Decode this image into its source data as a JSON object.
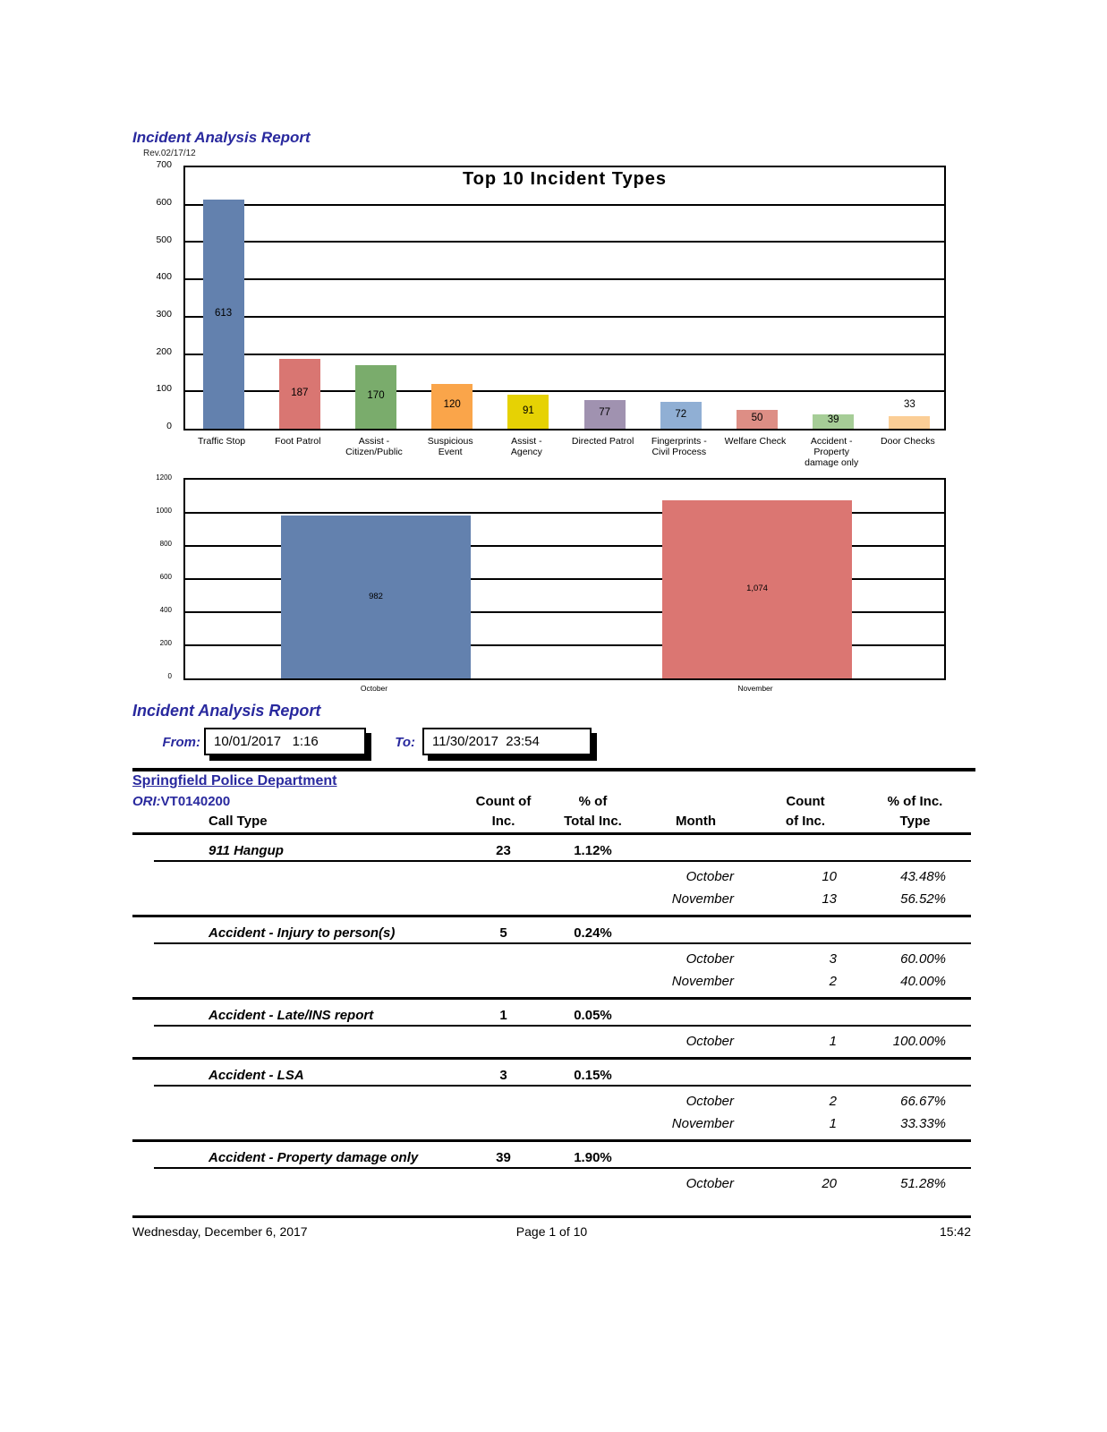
{
  "page": {
    "title": "Incident Analysis Report",
    "rev": "Rev.02/17/12"
  },
  "chart_data": [
    {
      "type": "bar",
      "title": "Top 10 Incident Types",
      "categories": [
        "Traffic Stop",
        "Foot Patrol",
        "Assist -\nCitizen/Public",
        "Suspicious\nEvent",
        "Assist -\nAgency",
        "Directed Patrol",
        "Fingerprints -\nCivil Process",
        "Welfare Check",
        "Accident -\nProperty\ndamage only",
        "Door Checks"
      ],
      "values": [
        613,
        187,
        170,
        120,
        91,
        77,
        72,
        50,
        39,
        33
      ],
      "labels": [
        "613",
        "187",
        "170",
        "120",
        "91",
        "77",
        "72",
        "50",
        "39",
        "33"
      ],
      "label_above": [
        false,
        false,
        false,
        false,
        false,
        false,
        false,
        false,
        false,
        true
      ],
      "colors": [
        "#6381AE",
        "#D97672",
        "#7AAC6C",
        "#FAA54A",
        "#E6D204",
        "#A092B0",
        "#90AFD4",
        "#DD8E85",
        "#A6CD97",
        "#FBCE96"
      ],
      "xlabel": "",
      "ylabel": "",
      "ylim": [
        0,
        700
      ],
      "ytick_step": 100,
      "grid": true,
      "legend": false
    },
    {
      "type": "bar",
      "title": "",
      "categories": [
        "October",
        "November"
      ],
      "values": [
        982,
        1074
      ],
      "labels": [
        "982",
        "1,074"
      ],
      "label_above": [
        false,
        false
      ],
      "colors": [
        "#6381AE",
        "#DB7672"
      ],
      "xlabel": "",
      "ylabel": "",
      "ylim": [
        0,
        1200
      ],
      "ytick_step": 200,
      "grid": true,
      "legend": false
    }
  ],
  "report": {
    "title": "Incident Analysis Report",
    "from_label": "From:",
    "from_value": "10/01/2017   1:16",
    "to_label": "To:",
    "to_value": "11/30/2017  23:54"
  },
  "department": {
    "name": "Springfield Police Department",
    "ori_label": "ORI:",
    "ori_value": "VT0140200"
  },
  "table": {
    "headers": {
      "call_type": "Call Type",
      "count_of_line1": "Count of",
      "count_of_line2": "Inc.",
      "pct_total_line1": "% of",
      "pct_total_line2": "Total Inc.",
      "month": "Month",
      "count_line1": "Count",
      "count_line2": "of Inc.",
      "pct_type_line1": "% of Inc.",
      "pct_type_line2": "Type"
    },
    "groups": [
      {
        "call_type": "911 Hangup",
        "count": "23",
        "pct": "1.12%",
        "end_rule": true,
        "months": [
          {
            "month": "October",
            "count": "10",
            "pct": "43.48%"
          },
          {
            "month": "November",
            "count": "13",
            "pct": "56.52%"
          }
        ]
      },
      {
        "call_type": "Accident - Injury to person(s)",
        "count": "5",
        "pct": "0.24%",
        "end_rule": true,
        "months": [
          {
            "month": "October",
            "count": "3",
            "pct": "60.00%"
          },
          {
            "month": "November",
            "count": "2",
            "pct": "40.00%"
          }
        ]
      },
      {
        "call_type": "Accident - Late/INS report",
        "count": "1",
        "pct": "0.05%",
        "end_rule": true,
        "months": [
          {
            "month": "October",
            "count": "1",
            "pct": "100.00%"
          }
        ]
      },
      {
        "call_type": "Accident - LSA",
        "count": "3",
        "pct": "0.15%",
        "end_rule": true,
        "months": [
          {
            "month": "October",
            "count": "2",
            "pct": "66.67%"
          },
          {
            "month": "November",
            "count": "1",
            "pct": "33.33%"
          }
        ]
      },
      {
        "call_type": "Accident - Property damage only",
        "count": "39",
        "pct": "1.90%",
        "end_rule": false,
        "months": [
          {
            "month": "October",
            "count": "20",
            "pct": "51.28%"
          }
        ]
      }
    ]
  },
  "footer": {
    "date": "Wednesday, December 6, 2017",
    "page": "Page 1 of 10",
    "time": "15:42"
  }
}
